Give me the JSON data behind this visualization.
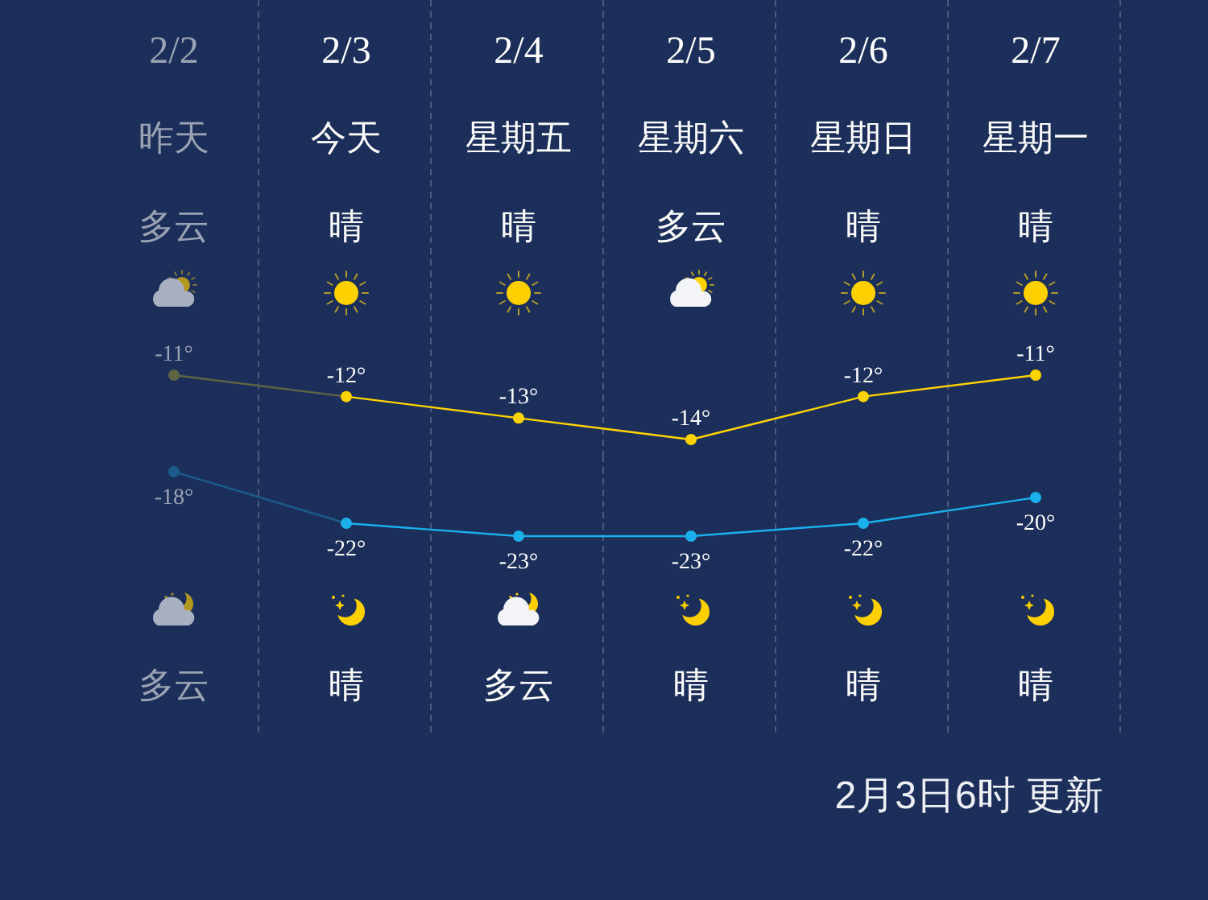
{
  "chart_data": [
    {
      "type": "line",
      "categories": [
        "2/2",
        "2/3",
        "2/4",
        "2/5",
        "2/6",
        "2/7"
      ],
      "series": [
        {
          "color": "#ffd400",
          "colors": [
            "#5f6443",
            "#ffd400",
            "#ffd400",
            "#ffd400",
            "#ffd400",
            "#ffd400"
          ],
          "values": [
            -11,
            -12,
            -13,
            -14,
            -12,
            -11
          ],
          "value_labels": [
            "-11°",
            "-12°",
            "-13°",
            "-14°",
            "-12°",
            "-11°"
          ]
        }
      ],
      "tick_labels": "x",
      "grid": "x",
      "marker": "circle",
      "line_style": "solid",
      "annotations": [
        "昨天",
        "今天",
        "星期五",
        "星期六",
        "星期日",
        "星期一",
        "多云",
        "晴",
        "晴",
        "多云",
        "晴",
        "晴"
      ]
    },
    {
      "type": "line",
      "categories": [
        null,
        null,
        null,
        null,
        null,
        null
      ],
      "series": [
        {
          "color": "#19b0ec",
          "colors": [
            "#1b5b8c",
            "#19b0ec",
            "#19b0ec",
            "#19b0ec",
            "#19b0ec",
            "#19b0ec"
          ],
          "values": [
            -18,
            -22,
            -23,
            -23,
            -22,
            -20
          ],
          "value_labels": [
            "-18°",
            "-22°",
            "-23°",
            "-23°",
            "-22°",
            "-20°"
          ]
        }
      ],
      "tick_labels": false,
      "grid": "x",
      "marker": "circle",
      "line_style": "solid",
      "annotations": [
        "多云",
        "晴",
        "多云",
        "晴",
        "晴",
        "晴",
        "2月3日6时 更新"
      ]
    }
  ]
}
